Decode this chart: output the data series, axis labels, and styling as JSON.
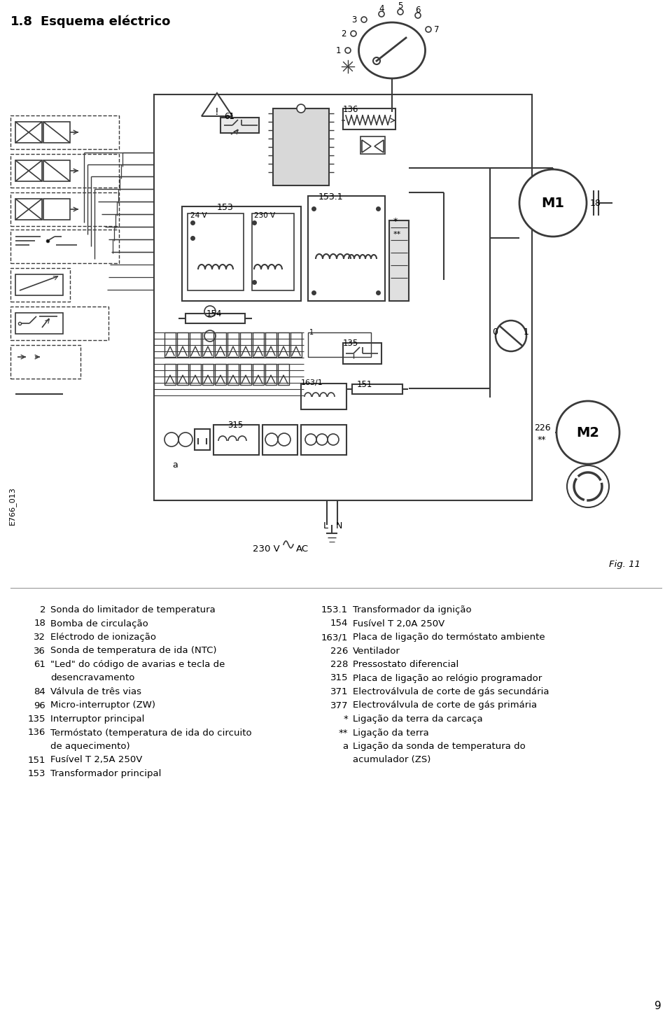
{
  "title_num": "1.8",
  "title_text": "Esquema eléctrico",
  "page_number": "9",
  "fig_label": "Fig. 11",
  "bg": "#ffffff",
  "lc": "#3a3a3a",
  "left_legend": [
    [
      "2",
      "Sonda do limitador de temperatura"
    ],
    [
      "18",
      "Bomba de circulação"
    ],
    [
      "32",
      "Eléctrodo de ionização"
    ],
    [
      "36",
      "Sonda de temperatura de ida (NTC)"
    ],
    [
      "61",
      "\"Led\" do código de avarias e tecla de"
    ],
    [
      "",
      "desencravamento"
    ],
    [
      "84",
      "Válvula de três vias"
    ],
    [
      "96",
      "Micro-interruptor (ZW)"
    ],
    [
      "135",
      "Interruptor principal"
    ],
    [
      "136",
      "Termóstato (temperatura de ida do circuito"
    ],
    [
      "",
      "de aquecimento)"
    ],
    [
      "151",
      "Fusível T 2,5A 250V"
    ],
    [
      "153",
      "Transformador principal"
    ]
  ],
  "right_legend": [
    [
      "153.1",
      "Transformador da ignição"
    ],
    [
      "154",
      "Fusível T 2,0A 250V"
    ],
    [
      "163/1",
      "Placa de ligação do termóstato ambiente"
    ],
    [
      "226",
      "Ventilador"
    ],
    [
      "228",
      "Pressostato diferencial"
    ],
    [
      "315",
      "Placa de ligação ao relógio programador"
    ],
    [
      "371",
      "Electroválvula de corte de gás secundária"
    ],
    [
      "377",
      "Electroválvula de corte de gás primária"
    ],
    [
      "*",
      "Ligação da terra da carcaça"
    ],
    [
      "**",
      "Ligação da terra"
    ],
    [
      "a",
      "Ligação da sonda de temperatura do"
    ],
    [
      "",
      "acumulador (ZS)"
    ]
  ]
}
